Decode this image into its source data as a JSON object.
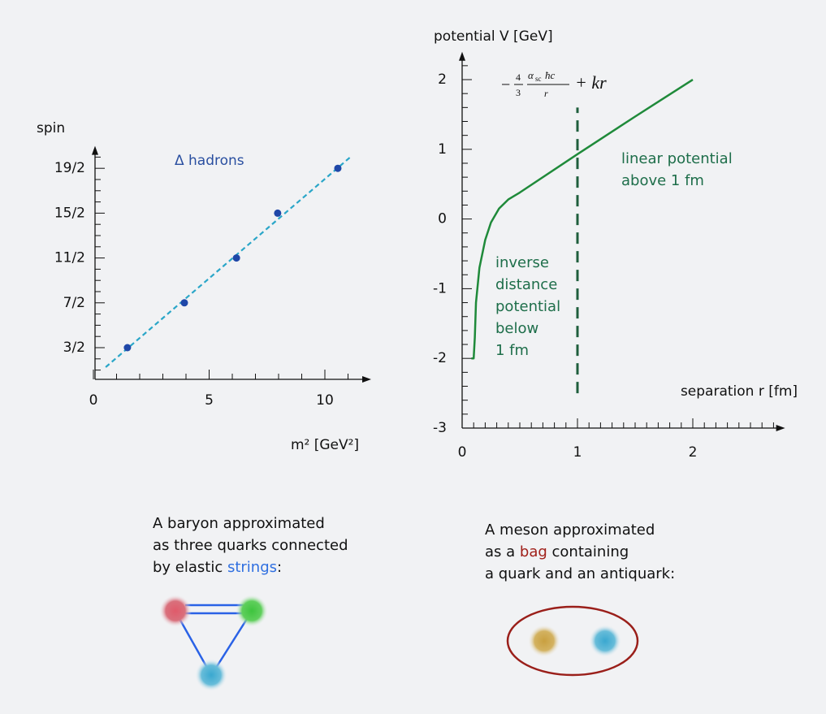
{
  "chart_data": [
    {
      "type": "scatter",
      "y_label": "spin",
      "x_label": "m² [GeV²]",
      "annotation": "Δ hadrons",
      "x": [
        1.47,
        3.93,
        6.18,
        7.96,
        10.56
      ],
      "values": [
        1.5,
        3.5,
        5.5,
        7.5,
        9.5
      ],
      "color": "#1f47a8",
      "trend": {
        "x": [
          0.53,
          11.1
        ],
        "y": [
          0.63,
          10.0
        ],
        "color": "#2aa6c8"
      },
      "xlim": [
        0,
        12
      ],
      "ylim": [
        0,
        10.5
      ],
      "xticks": [
        0,
        5,
        10
      ],
      "yticks": [
        {
          "value": 1.5,
          "label": "3/2"
        },
        {
          "value": 3.5,
          "label": "7/2"
        },
        {
          "value": 5.5,
          "label": "11/2"
        },
        {
          "value": 7.5,
          "label": "15/2"
        },
        {
          "value": 9.5,
          "label": "19/2"
        }
      ],
      "xticks_minor": [
        1,
        2,
        3,
        4,
        6,
        7,
        8,
        9,
        11
      ],
      "yticks_minor": [
        0.5,
        1,
        2,
        2.5,
        3,
        4,
        4.5,
        5,
        6,
        6.5,
        7,
        8,
        8.5,
        9,
        10
      ]
    },
    {
      "type": "line",
      "y_label": "potential V  [GeV]",
      "x_label": "separation r [fm]",
      "x": [
        0.08,
        0.1,
        0.11,
        0.12,
        0.15,
        0.2,
        0.25,
        0.32,
        0.4,
        0.5,
        1,
        1.5,
        2
      ],
      "values": [
        -2,
        -2,
        -1.7,
        -1.2,
        -0.7,
        -0.3,
        -0.05,
        0.15,
        0.28,
        0.38,
        0.93,
        1.47,
        2.0
      ],
      "color": "#1f8a3a",
      "marker_x": 1,
      "marker_ylim": [
        -2.5,
        1.6
      ],
      "marker_color": "#1e5e3c",
      "annotations": [
        [
          "linear potential",
          "above 1 fm"
        ],
        [
          "inverse",
          "distance",
          "potential",
          "below",
          "1 fm"
        ]
      ],
      "annotation_color": "#1e6e4a",
      "formula": [
        "−",
        "4",
        "3",
        "α",
        "sc",
        "ħc",
        "r",
        "+ kr"
      ],
      "xlim": [
        0,
        2.8
      ],
      "ylim": [
        -3,
        2.4
      ],
      "xticks": [
        0,
        1,
        2
      ],
      "yticks": [
        -3,
        -2,
        -1,
        0,
        1,
        2
      ],
      "xticks_minor": [
        0.1,
        0.2,
        0.3,
        0.4,
        0.5,
        0.6,
        0.7,
        0.8,
        0.9,
        1.1,
        1.2,
        1.3,
        1.4,
        1.5,
        1.6,
        1.7,
        1.8,
        1.9,
        2.1,
        2.2,
        2.3,
        2.4,
        2.5,
        2.6,
        2.7
      ],
      "yticks_minor": [
        -2.8,
        -2.6,
        -2.4,
        -2.2,
        -1.8,
        -1.6,
        -1.4,
        -1.2,
        -0.8,
        -0.6,
        -0.4,
        -0.2,
        0.2,
        0.4,
        0.6,
        0.8,
        1.2,
        1.4,
        1.6,
        1.8,
        2.2
      ]
    }
  ],
  "baryon_caption": [
    [
      "A baryon approximated"
    ],
    [
      "as three quarks connected"
    ],
    [
      "by elastic ",
      "strings",
      ":"
    ]
  ],
  "meson_caption": [
    [
      "A meson approximated"
    ],
    [
      "as a ",
      "bag",
      " containing"
    ],
    [
      "a quark and an antiquark:"
    ]
  ]
}
